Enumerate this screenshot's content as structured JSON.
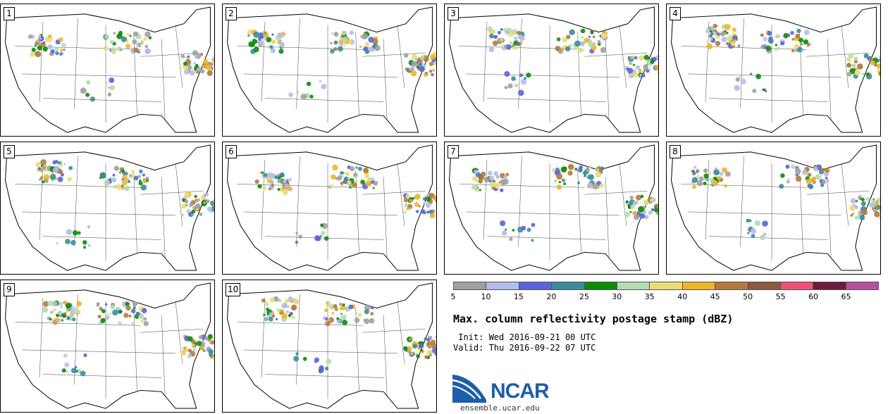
{
  "panels": [
    "1",
    "2",
    "3",
    "4",
    "5",
    "6",
    "7",
    "8",
    "9",
    "10"
  ],
  "colorbar": {
    "colors": [
      "#a0a0a0",
      "#b4bcea",
      "#5a64dc",
      "#3c8c9c",
      "#0a8c0a",
      "#b4dcb4",
      "#ecdc78",
      "#f0b428",
      "#b47a3c",
      "#8c5a3c",
      "#f05078",
      "#6e1a3c",
      "#b450a0"
    ],
    "labels": [
      "5",
      "10",
      "15",
      "20",
      "25",
      "30",
      "35",
      "40",
      "45",
      "50",
      "55",
      "60",
      "65"
    ]
  },
  "title": "Max. column reflectivity postage stamp (dBZ)",
  "init": " Init: Wed 2016-09-21 00 UTC",
  "valid": "Valid: Thu 2016-09-22 07 UTC",
  "logo": {
    "name": "NCAR",
    "icon": "ncar-logo-icon",
    "color": "#1f5ea8"
  },
  "site": "ensemble.ucar.edu"
}
